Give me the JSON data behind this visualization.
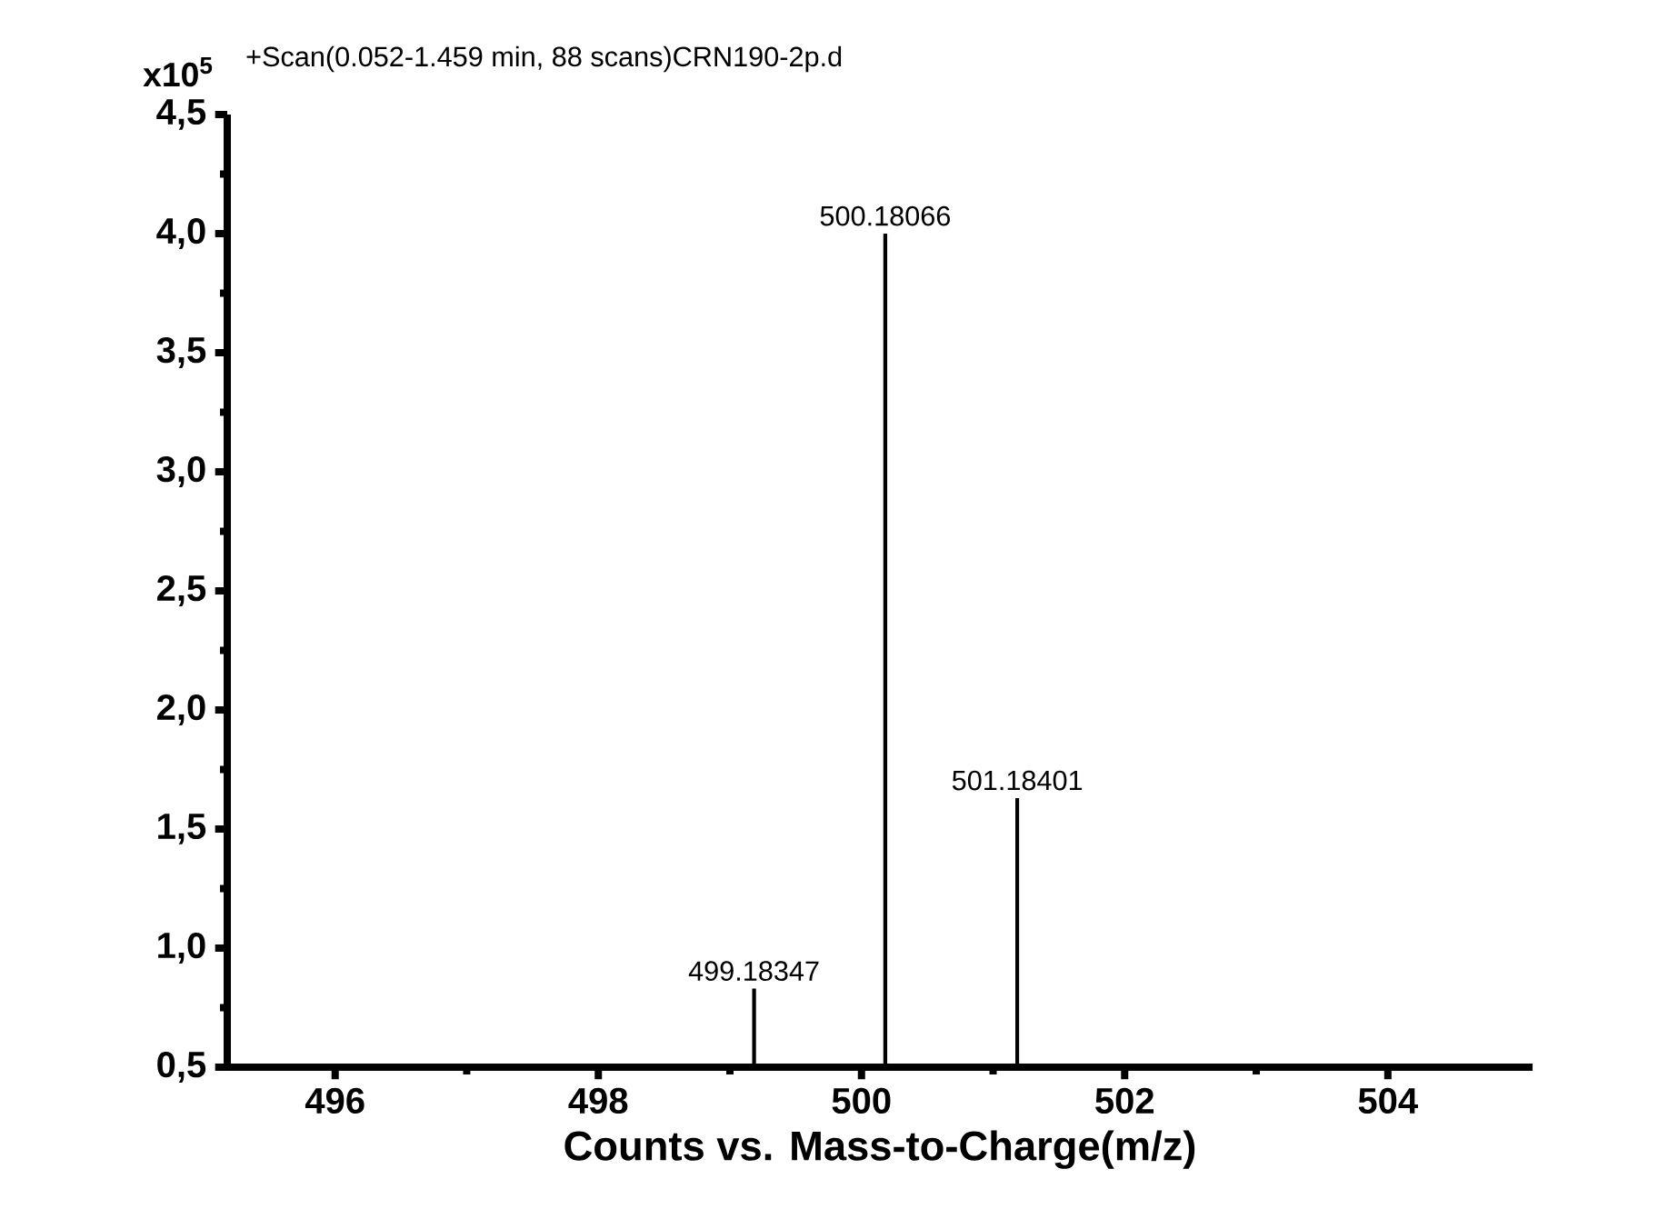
{
  "chart_data": {
    "type": "bar",
    "title": "+Scan(0.052-1.459 min, 88 scans)CRN190-2p.d",
    "ylabel": "x10$^{5}$",
    "xlabel": "Counts vs. Mass-to-Charge(m/z)",
    "x": [
      499.18347,
      500.18066,
      501.18401
    ],
    "values": [
      0.83,
      4.0,
      1.63
    ],
    "annotations": [
      {
        "text": "499.18347",
        "x": 499.18347,
        "y": 0.83
      },
      {
        "text": "500.18066",
        "x": 500.18066,
        "y": 4.0
      },
      {
        "text": "501.18401",
        "x": 501.18401,
        "y": 1.63
      }
    ],
    "color": "#000000",
    "xlim": [
      495.18,
      505.1
    ],
    "ylim": [
      0.5,
      4.5
    ],
    "xticks": [
      496,
      498,
      500,
      502,
      504
    ],
    "yticks": [
      {
        "value": 0.5,
        "label": "0,5"
      },
      {
        "value": 1.0,
        "label": "1,0"
      },
      {
        "value": 1.5,
        "label": "1,5"
      },
      {
        "value": 2.0,
        "label": "2,0"
      },
      {
        "value": 2.5,
        "label": "2,5"
      },
      {
        "value": 3.0,
        "label": "3,0"
      },
      {
        "value": 3.5,
        "label": "3,5"
      },
      {
        "value": 4.0,
        "label": "4,0"
      },
      {
        "value": 4.5,
        "label": "4,5"
      }
    ]
  }
}
